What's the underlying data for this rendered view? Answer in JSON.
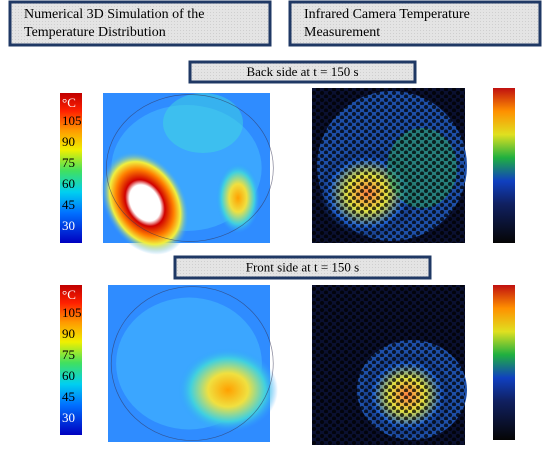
{
  "headers": [
    "Numerical 3D Simulation of the Temperature Distribution",
    "Infrared Camera Temperature Measurement"
  ],
  "panels": [
    {
      "label": "Back side at t =  150 s",
      "colorbar": {
        "unit": "°C",
        "ticks": [
          105,
          90,
          75,
          60,
          45,
          30
        ]
      }
    },
    {
      "label": "Front side at t =  150 s",
      "colorbar": {
        "unit": "°C",
        "ticks": [
          105,
          90,
          75,
          60,
          45,
          30
        ]
      }
    }
  ]
}
